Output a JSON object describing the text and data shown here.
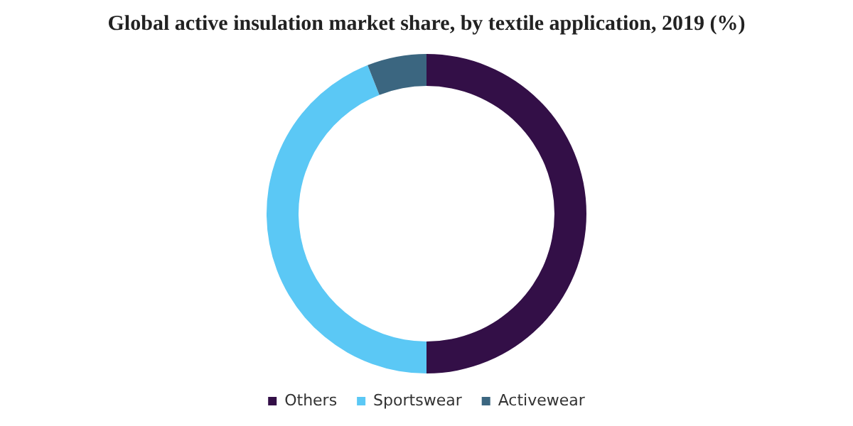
{
  "chart_data": {
    "type": "donut",
    "title": "Global active insulation market share, by textile application, 2019 (%)",
    "categories": [
      "Others",
      "Sportswear",
      "Activewear"
    ],
    "values": [
      50,
      44,
      6
    ],
    "colors": [
      "#330f47",
      "#5bc8f5",
      "#3b6680"
    ],
    "legend": "bottom"
  }
}
